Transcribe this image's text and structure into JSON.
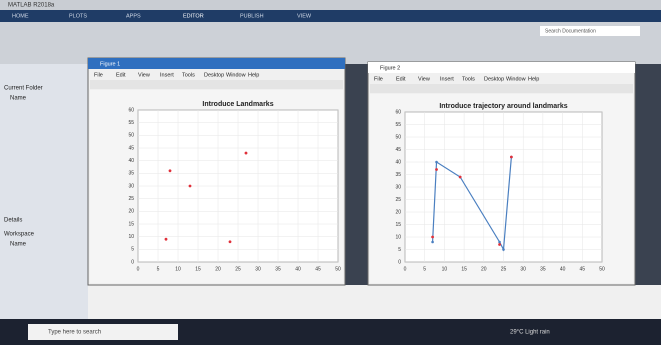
{
  "window_title": "MATLAB R2018a",
  "tabs": [
    "HOME",
    "PLOTS",
    "APPS",
    "EDITOR",
    "PUBLISH",
    "VIEW"
  ],
  "search_placeholder": "Search Documentation",
  "left_panel": {
    "current_folder": "Current Folder",
    "name_header": "Name",
    "details": "Details",
    "workspace": "Workspace"
  },
  "figures": [
    {
      "title": "Figure 1",
      "menu": [
        "File",
        "Edit",
        "View",
        "Insert",
        "Tools",
        "Desktop",
        "Window",
        "Help"
      ]
    },
    {
      "title": "Figure 2",
      "menu": [
        "File",
        "Edit",
        "View",
        "Insert",
        "Tools",
        "Desktop",
        "Window",
        "Help"
      ]
    }
  ],
  "chart_data": [
    {
      "type": "scatter",
      "title": "Introduce Landmarks",
      "series": [
        {
          "color": "#e0303a",
          "x": [
            7,
            8,
            13,
            23,
            27
          ],
          "values": [
            9,
            36,
            30,
            8,
            43
          ]
        }
      ],
      "xlim": [
        0,
        50
      ],
      "xticks": [
        0,
        5,
        10,
        15,
        20,
        25,
        30,
        35,
        40,
        45,
        50
      ],
      "ylim": [
        0,
        60
      ],
      "yticks": [
        0,
        5,
        10,
        15,
        20,
        25,
        30,
        35,
        40,
        45,
        50,
        55,
        60
      ],
      "grid": true
    },
    {
      "type": "line",
      "title": "Introduce trajectory around landmarks",
      "series": [
        {
          "color": "#4a7fc0",
          "x": [
            7,
            8,
            14,
            24,
            25,
            27
          ],
          "values": [
            8,
            40,
            34,
            8,
            5,
            42
          ]
        },
        {
          "color": "#e0303a",
          "x": [
            7,
            8,
            14,
            24,
            27
          ],
          "values": [
            10,
            37,
            34,
            7,
            42
          ],
          "markers_only": true
        }
      ],
      "xlim": [
        0,
        50
      ],
      "xticks": [
        0,
        5,
        10,
        15,
        20,
        25,
        30,
        35,
        40,
        45,
        50
      ],
      "ylim": [
        0,
        60
      ],
      "yticks": [
        0,
        5,
        10,
        15,
        20,
        25,
        30,
        35,
        40,
        45,
        50,
        55,
        60
      ],
      "grid": true
    }
  ],
  "taskbar": {
    "search": "Type here to search",
    "weather": "29°C Light rain"
  }
}
